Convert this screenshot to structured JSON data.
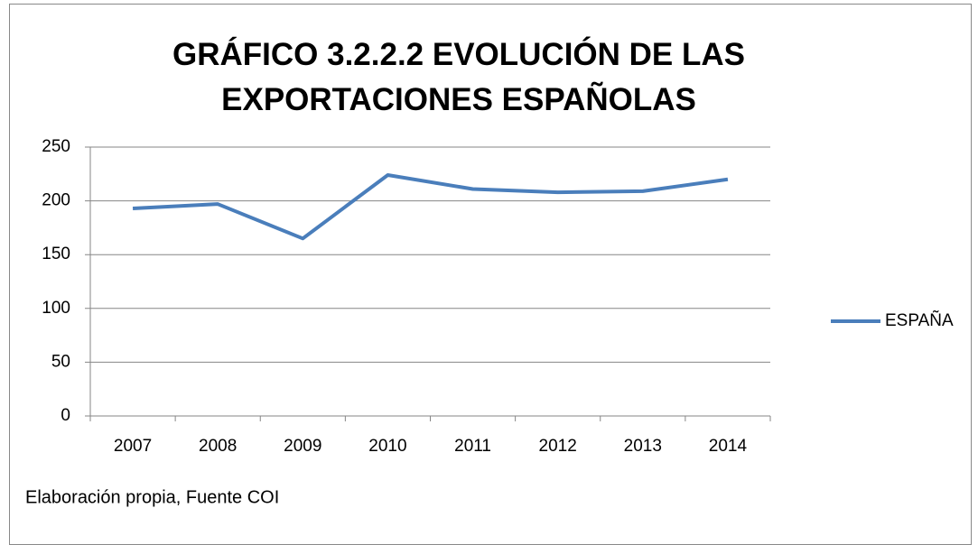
{
  "chart_data": {
    "type": "line",
    "title": "GRÁFICO 3.2.2.2 EVOLUCIÓN DE LAS EXPORTACIONES ESPAÑOLAS",
    "categories": [
      "2007",
      "2008",
      "2009",
      "2010",
      "2011",
      "2012",
      "2013",
      "2014"
    ],
    "series": [
      {
        "name": "ESPAÑA",
        "color": "#4a7ebb",
        "values": [
          193,
          197,
          165,
          224,
          211,
          208,
          209,
          220
        ]
      }
    ],
    "ylim": [
      0,
      250
    ],
    "yticks": [
      0,
      50,
      100,
      150,
      200,
      250
    ],
    "grid": true,
    "legend": "right",
    "note": "Elaboración propia, Fuente COI"
  }
}
